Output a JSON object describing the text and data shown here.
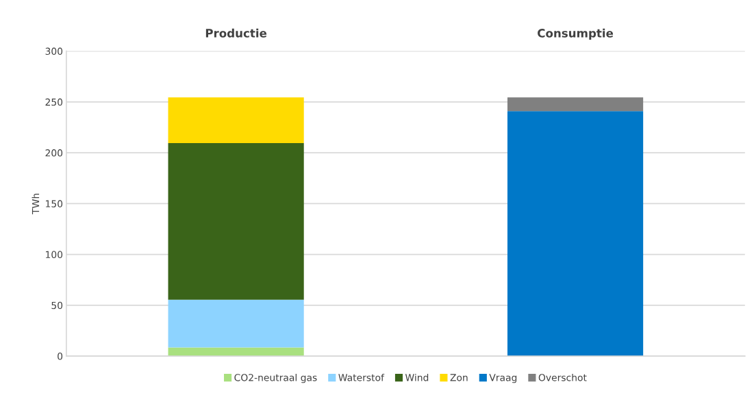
{
  "chart_data": {
    "type": "bar",
    "stacked": true,
    "ylabel": "TWh",
    "categories": [
      "Productie",
      "Consumptie"
    ],
    "series": [
      {
        "name": "CO2-neutraal gas",
        "color": "#a9e07f",
        "values": [
          8.5,
          null
        ]
      },
      {
        "name": "Waterstof",
        "color": "#8dd3ff",
        "values": [
          47,
          null
        ]
      },
      {
        "name": "Wind",
        "color": "#3a6419",
        "values": [
          154,
          null
        ]
      },
      {
        "name": "Zon",
        "color": "#ffdb00",
        "values": [
          45,
          null
        ]
      },
      {
        "name": "Vraag",
        "color": "#0078c8",
        "values": [
          null,
          241
        ]
      },
      {
        "name": "Overschot",
        "color": "#808080",
        "values": [
          null,
          13.5
        ]
      }
    ],
    "ylim": [
      0,
      300
    ],
    "yticks": [
      0,
      50,
      100,
      150,
      200,
      250,
      300
    ],
    "grid": "y",
    "legend": "bottom"
  }
}
